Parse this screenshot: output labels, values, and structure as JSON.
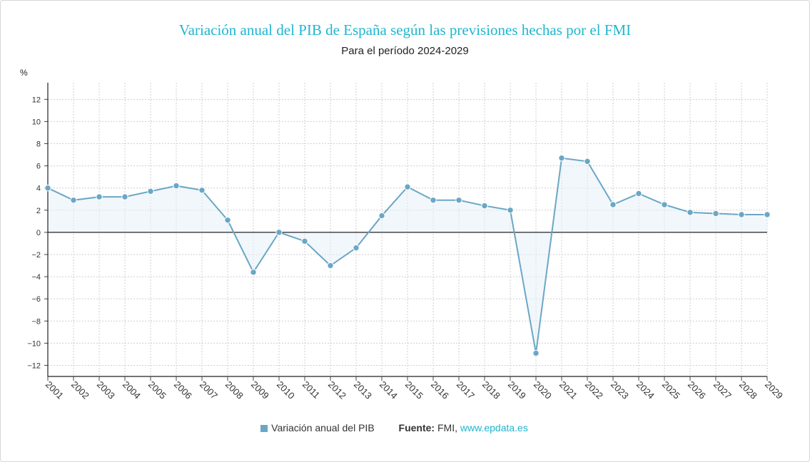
{
  "title": "Variación anual del PIB de España según las previsiones hechas por el FMI",
  "subtitle": "Para el período 2024-2029",
  "legend": {
    "series_label": "Variación anual del PIB",
    "source_label": "Fuente:",
    "source_name": "FMI,",
    "source_link": "www.epdata.es"
  },
  "colors": {
    "line": "#6aa7c6",
    "title": "#1fb6cf"
  },
  "chart_data": {
    "type": "line",
    "title": "Variación anual del PIB de España según las previsiones hechas por el FMI",
    "subtitle": "Para el período 2024-2029",
    "ylabel": "%",
    "xlabel": "",
    "ylim": [
      -13,
      13.5
    ],
    "yticks": [
      12,
      10,
      8,
      6,
      4,
      2,
      0,
      -2,
      -4,
      -6,
      -8,
      -10,
      -12
    ],
    "ytick_labels": [
      "12",
      "10",
      "8",
      "6",
      "4",
      "2",
      "0",
      "−2",
      "−4",
      "−6",
      "−8",
      "−10",
      "−12"
    ],
    "grid": true,
    "categories": [
      "2001",
      "2002",
      "2003",
      "2004",
      "2005",
      "2006",
      "2007",
      "2008",
      "2009",
      "2010",
      "2011",
      "2012",
      "2013",
      "2014",
      "2015",
      "2016",
      "2017",
      "2018",
      "2019",
      "2020",
      "2021",
      "2022",
      "2023",
      "2024",
      "2025",
      "2026",
      "2027",
      "2028",
      "2029"
    ],
    "series": [
      {
        "name": "Variación anual del PIB",
        "values": [
          4.0,
          2.9,
          3.2,
          3.2,
          3.7,
          4.2,
          3.8,
          1.1,
          -3.6,
          0.0,
          -0.8,
          -3.0,
          -1.4,
          1.5,
          4.1,
          2.9,
          2.9,
          2.4,
          2.0,
          -10.9,
          6.7,
          6.4,
          2.5,
          3.5,
          2.5,
          1.8,
          1.7,
          1.6,
          1.6
        ]
      }
    ]
  }
}
